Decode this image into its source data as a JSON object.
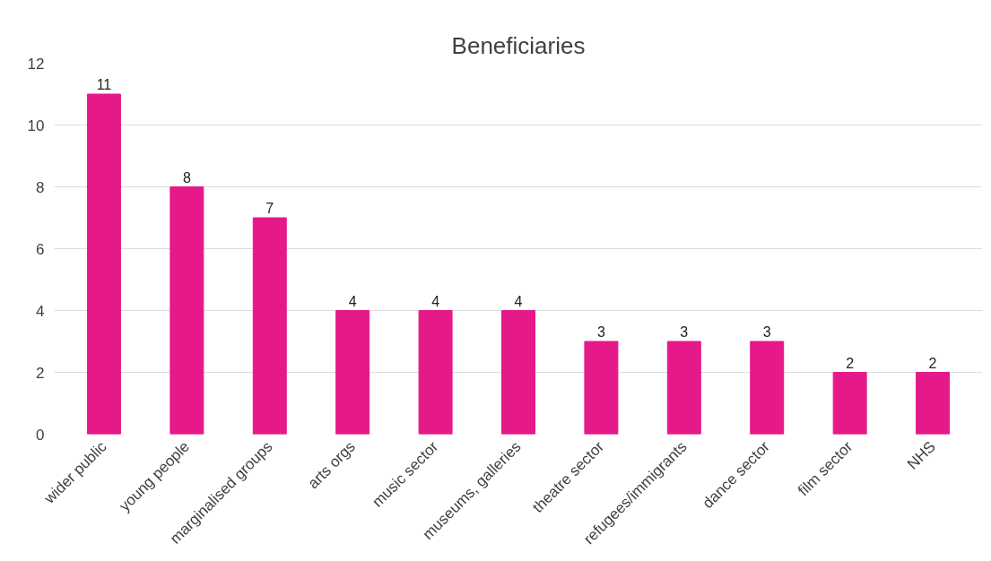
{
  "chart_data": {
    "type": "bar",
    "title": "Beneficiaries",
    "categories": [
      "wider public",
      "young people",
      "marginalised groups",
      "arts orgs",
      "music sector",
      "museums, galleries",
      "theatre sector",
      "refugees/immigrants",
      "dance sector",
      "film sector",
      "NHS"
    ],
    "values": [
      11,
      8,
      7,
      4,
      4,
      4,
      3,
      3,
      3,
      2,
      2
    ],
    "color": "#e5198a",
    "ylim": [
      0,
      12
    ],
    "yticks": [
      0,
      2,
      4,
      6,
      8,
      10,
      12
    ],
    "grid": "y",
    "data_labels": true
  }
}
